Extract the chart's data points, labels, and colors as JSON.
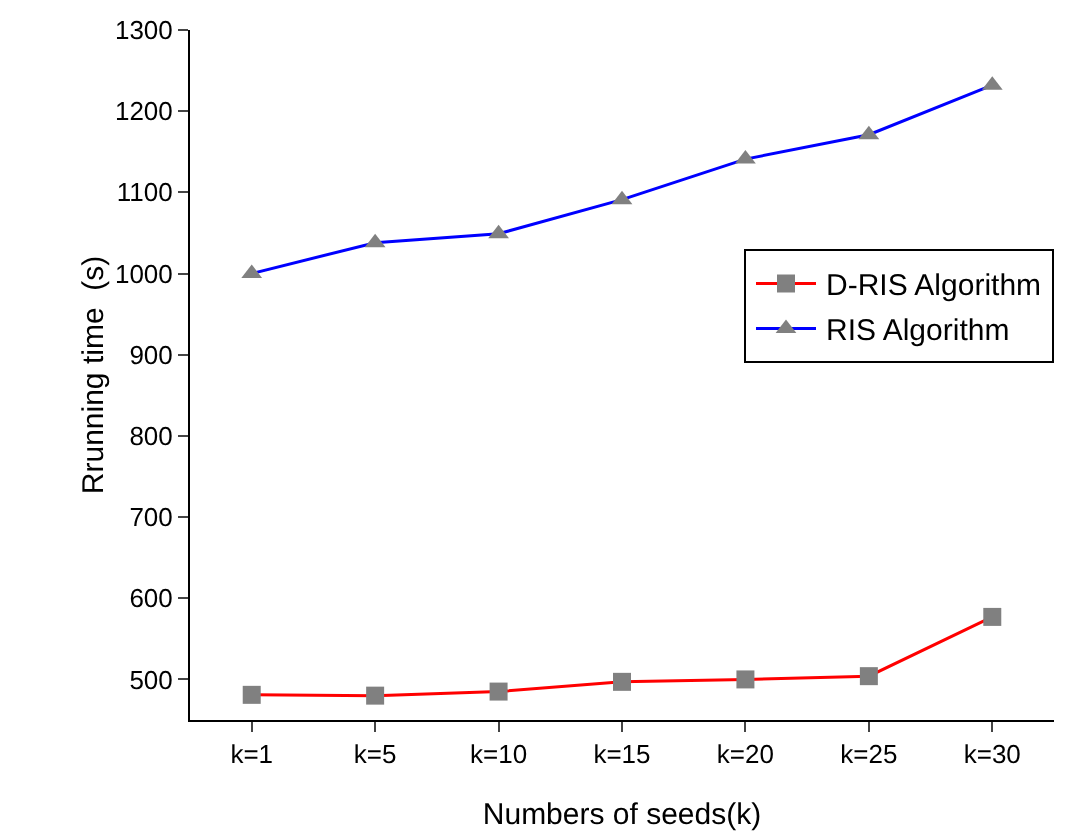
{
  "chart_data": {
    "type": "line",
    "xlabel": "Numbers of seeds(k)",
    "ylabel": "Rrunning time  (s)",
    "categories": [
      "k=1",
      "k=5",
      "k=10",
      "k=15",
      "k=20",
      "k=25",
      "k=30"
    ],
    "series": [
      {
        "name": "D-RIS Algorithm",
        "color": "#ff0000",
        "marker": "square",
        "values": [
          481,
          480,
          485,
          497,
          500,
          504,
          577
        ]
      },
      {
        "name": "RIS Algorithm",
        "color": "#0000ff",
        "marker": "triangle",
        "values": [
          1000,
          1038,
          1049,
          1091,
          1141,
          1171,
          1232
        ]
      }
    ],
    "ylim": [
      450,
      1300
    ],
    "yticks": [
      500,
      600,
      700,
      800,
      900,
      1000,
      1100,
      1200,
      1300
    ],
    "grid": false,
    "legend": "right",
    "line_style": "solid"
  }
}
